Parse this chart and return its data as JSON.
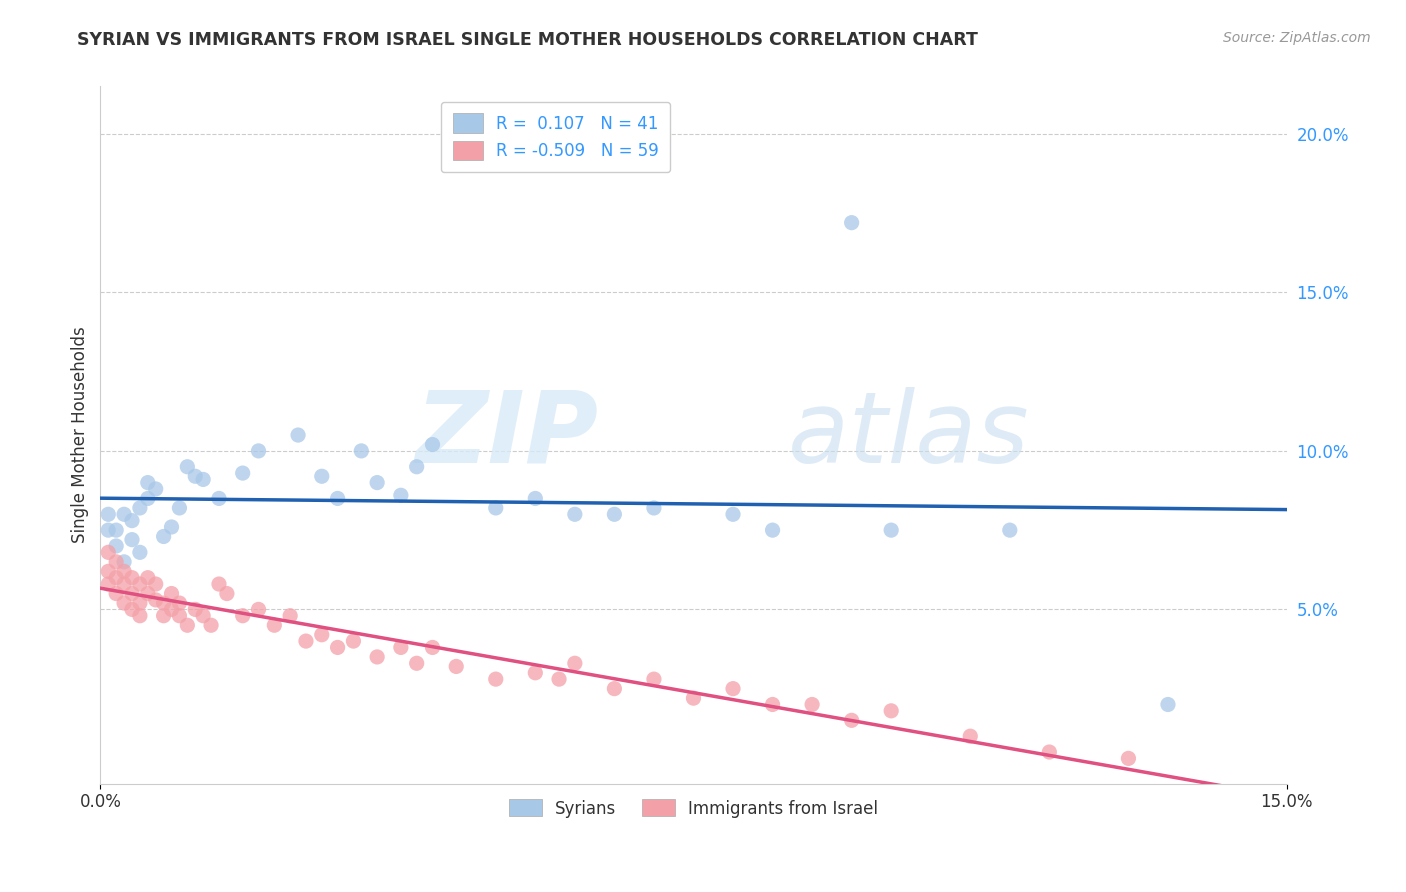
{
  "title": "SYRIAN VS IMMIGRANTS FROM ISRAEL SINGLE MOTHER HOUSEHOLDS CORRELATION CHART",
  "source": "Source: ZipAtlas.com",
  "ylabel": "Single Mother Households",
  "watermark_zip": "ZIP",
  "watermark_atlas": "atlas",
  "legend_syrians_label": "Syrians",
  "legend_israel_label": "Immigrants from Israel",
  "syrian_R": 0.107,
  "syrian_N": 41,
  "israel_R": -0.509,
  "israel_N": 59,
  "syrian_color": "#a8c8e8",
  "israel_color": "#f4a0a8",
  "syrian_line_color": "#2060b0",
  "israel_line_color": "#e05080",
  "xlim": [
    0.0,
    0.15
  ],
  "ylim": [
    -0.005,
    0.215
  ],
  "xtick_positions": [
    0.0,
    0.15
  ],
  "xtick_labels": [
    "0.0%",
    "15.0%"
  ],
  "ytick_positions": [
    0.05,
    0.1,
    0.15,
    0.2
  ],
  "ytick_labels": [
    "5.0%",
    "10.0%",
    "15.0%",
    "20.0%"
  ],
  "grid_yticks": [
    0.05,
    0.1,
    0.15,
    0.2
  ],
  "syrian_scatter_x": [
    0.001,
    0.001,
    0.002,
    0.002,
    0.003,
    0.003,
    0.004,
    0.004,
    0.005,
    0.005,
    0.006,
    0.006,
    0.007,
    0.008,
    0.009,
    0.01,
    0.011,
    0.012,
    0.013,
    0.015,
    0.018,
    0.02,
    0.025,
    0.028,
    0.03,
    0.033,
    0.035,
    0.038,
    0.04,
    0.042,
    0.05,
    0.055,
    0.06,
    0.065,
    0.07,
    0.08,
    0.085,
    0.095,
    0.1,
    0.115,
    0.135
  ],
  "syrian_scatter_y": [
    0.075,
    0.08,
    0.07,
    0.075,
    0.065,
    0.08,
    0.072,
    0.078,
    0.068,
    0.082,
    0.09,
    0.085,
    0.088,
    0.073,
    0.076,
    0.082,
    0.095,
    0.092,
    0.091,
    0.085,
    0.093,
    0.1,
    0.105,
    0.092,
    0.085,
    0.1,
    0.09,
    0.086,
    0.095,
    0.102,
    0.082,
    0.085,
    0.08,
    0.08,
    0.082,
    0.08,
    0.075,
    0.172,
    0.075,
    0.075,
    0.02
  ],
  "israel_scatter_x": [
    0.001,
    0.001,
    0.001,
    0.002,
    0.002,
    0.002,
    0.003,
    0.003,
    0.003,
    0.004,
    0.004,
    0.004,
    0.005,
    0.005,
    0.005,
    0.006,
    0.006,
    0.007,
    0.007,
    0.008,
    0.008,
    0.009,
    0.009,
    0.01,
    0.01,
    0.011,
    0.012,
    0.013,
    0.014,
    0.015,
    0.016,
    0.018,
    0.02,
    0.022,
    0.024,
    0.026,
    0.028,
    0.03,
    0.032,
    0.035,
    0.038,
    0.04,
    0.042,
    0.045,
    0.05,
    0.055,
    0.058,
    0.06,
    0.065,
    0.07,
    0.075,
    0.08,
    0.085,
    0.09,
    0.095,
    0.1,
    0.11,
    0.12,
    0.13
  ],
  "israel_scatter_y": [
    0.068,
    0.062,
    0.058,
    0.065,
    0.06,
    0.055,
    0.062,
    0.058,
    0.052,
    0.06,
    0.055,
    0.05,
    0.058,
    0.052,
    0.048,
    0.06,
    0.055,
    0.058,
    0.053,
    0.052,
    0.048,
    0.055,
    0.05,
    0.052,
    0.048,
    0.045,
    0.05,
    0.048,
    0.045,
    0.058,
    0.055,
    0.048,
    0.05,
    0.045,
    0.048,
    0.04,
    0.042,
    0.038,
    0.04,
    0.035,
    0.038,
    0.033,
    0.038,
    0.032,
    0.028,
    0.03,
    0.028,
    0.033,
    0.025,
    0.028,
    0.022,
    0.025,
    0.02,
    0.02,
    0.015,
    0.018,
    0.01,
    0.005,
    0.003
  ]
}
